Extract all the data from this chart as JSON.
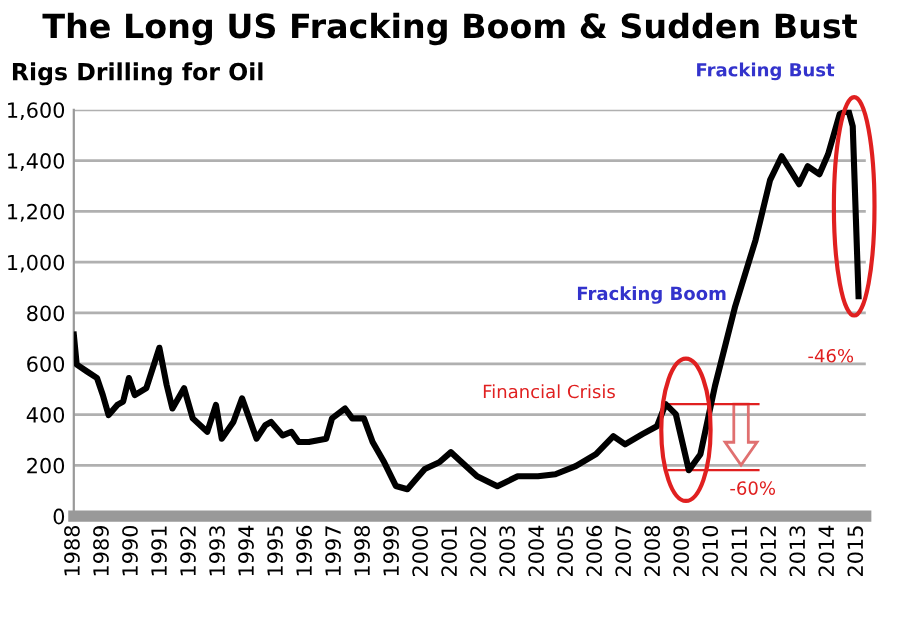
{
  "chart_data": {
    "type": "line",
    "title": "The Long US Fracking Boom & Sudden Bust",
    "subtitle": "Rigs Drilling for Oil",
    "series": [
      {
        "color": "#000000",
        "x": [
          1988.0,
          1988.1,
          1988.45,
          1988.8,
          1989.0,
          1989.2,
          1989.5,
          1989.7,
          1989.9,
          1990.1,
          1990.5,
          1990.95,
          1991.2,
          1991.4,
          1991.8,
          1992.1,
          1992.6,
          1992.9,
          1993.1,
          1993.5,
          1993.8,
          1994.3,
          1994.6,
          1994.8,
          1995.2,
          1995.5,
          1995.75,
          1996.1,
          1996.7,
          1996.9,
          1997.35,
          1997.6,
          1998.0,
          1998.3,
          1998.7,
          1999.1,
          1999.5,
          1999.8,
          2000.1,
          2000.6,
          2001.0,
          2001.25,
          2001.9,
          2002.6,
          2003.3,
          2004.0,
          2004.6,
          2005.3,
          2006.0,
          2006.6,
          2007.0,
          2007.6,
          2008.1,
          2008.4,
          2008.75,
          2009.2,
          2009.6,
          2010.1,
          2010.8,
          2011.5,
          2012.0,
          2012.4,
          2012.7,
          2013.0,
          2013.3,
          2013.7,
          2014.0,
          2014.4,
          2014.7,
          2014.85,
          2015.05
        ],
        "values": [
          715,
          597,
          570,
          544,
          477,
          398,
          438,
          451,
          544,
          477,
          504,
          663,
          517,
          424,
          504,
          385,
          332,
          438,
          305,
          371,
          464,
          305,
          358,
          371,
          318,
          332,
          292,
          292,
          305,
          385,
          424,
          385,
          385,
          292,
          212,
          119,
          106,
          146,
          186,
          212,
          252,
          225,
          157,
          118,
          157,
          157,
          165,
          197,
          244,
          315,
          283,
          323,
          354,
          441,
          402,
          181,
          244,
          512,
          827,
          1087,
          1323,
          1417,
          1362,
          1307,
          1378,
          1346,
          1425,
          1583,
          1598,
          1535,
          866
        ]
      }
    ],
    "xlim": [
      1988,
      2015.3
    ],
    "xticks": [
      1988,
      1989,
      1990,
      1991,
      1992,
      1993,
      1994,
      1995,
      1996,
      1997,
      1998,
      1999,
      2000,
      2001,
      2002,
      2003,
      2004,
      2005,
      2006,
      2007,
      2008,
      2009,
      2010,
      2011,
      2012,
      2013,
      2014,
      2015
    ],
    "ylim": [
      0,
      1600
    ],
    "yticks": [
      0,
      200,
      400,
      600,
      800,
      {
        "value": 1000,
        "label": "1,000"
      },
      {
        "value": 1200,
        "label": "1,200"
      },
      {
        "value": 1400,
        "label": "1,400"
      },
      {
        "value": 1600,
        "label": "1,600"
      }
    ],
    "grid": "y",
    "marker": "none",
    "line_style": "solid",
    "annotations": [
      {
        "text": "Fracking Boom",
        "x": 2010.8,
        "y": 827
      },
      {
        "text": "Fracking Bust",
        "x": 2014.7,
        "y": 1598
      },
      {
        "text": "Financial Crisis",
        "x": 2008.4,
        "y": 441
      },
      {
        "text": "-46%",
        "x": 2015.05,
        "y": 866
      },
      {
        "text": "-60%",
        "x": 2009.2,
        "y": 181
      }
    ]
  }
}
